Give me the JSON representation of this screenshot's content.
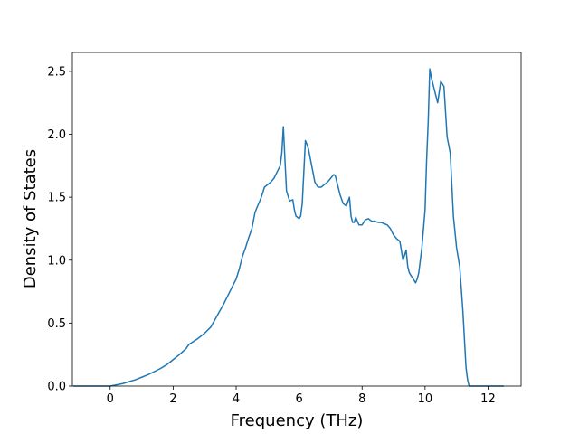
{
  "chart_data": {
    "type": "line",
    "title": "",
    "xlabel": "Frequency (THz)",
    "ylabel": "Density of States",
    "xlim": [
      -1.2,
      13.05
    ],
    "ylim": [
      0.0,
      2.65
    ],
    "xticks": [
      0,
      2,
      4,
      6,
      8,
      10,
      12
    ],
    "xtick_labels": [
      "0",
      "2",
      "4",
      "6",
      "8",
      "10",
      "12"
    ],
    "yticks": [
      0.0,
      0.5,
      1.0,
      1.5,
      2.0,
      2.5
    ],
    "ytick_labels": [
      "0.0",
      "0.5",
      "1.0",
      "1.5",
      "2.0",
      "2.5"
    ],
    "grid": false,
    "legend": "none",
    "line_color": "#1f77b4",
    "series": [
      {
        "x": [
          -1.17,
          -0.5,
          0.0,
          0.2,
          0.4,
          0.6,
          0.8,
          1.0,
          1.2,
          1.4,
          1.6,
          1.8,
          2.0,
          2.2,
          2.4,
          2.5,
          2.8,
          3.0,
          3.2,
          3.4,
          3.6,
          3.8,
          3.9,
          4.0,
          4.1,
          4.2,
          4.3,
          4.4,
          4.5,
          4.6,
          4.7,
          4.8,
          4.9,
          5.0,
          5.1,
          5.2,
          5.3,
          5.4,
          5.45,
          5.5,
          5.55,
          5.6,
          5.7,
          5.8,
          5.85,
          5.9,
          6.0,
          6.05,
          6.1,
          6.2,
          6.25,
          6.3,
          6.4,
          6.5,
          6.6,
          6.7,
          6.8,
          6.9,
          7.0,
          7.1,
          7.15,
          7.2,
          7.3,
          7.4,
          7.5,
          7.6,
          7.65,
          7.7,
          7.75,
          7.8,
          7.9,
          8.0,
          8.1,
          8.2,
          8.3,
          8.4,
          8.5,
          8.6,
          8.7,
          8.8,
          8.9,
          9.0,
          9.1,
          9.2,
          9.3,
          9.4,
          9.45,
          9.5,
          9.6,
          9.7,
          9.75,
          9.8,
          9.9,
          10.0,
          10.05,
          10.1,
          10.15,
          10.2,
          10.3,
          10.4,
          10.5,
          10.6,
          10.7,
          10.8,
          10.9,
          11.0,
          11.1,
          11.2,
          11.3,
          11.35,
          11.4,
          11.45,
          11.5,
          12.5
        ],
        "y": [
          0.0,
          0.0,
          0.0,
          0.01,
          0.02,
          0.035,
          0.05,
          0.07,
          0.09,
          0.115,
          0.14,
          0.17,
          0.21,
          0.25,
          0.295,
          0.33,
          0.38,
          0.42,
          0.47,
          0.56,
          0.65,
          0.75,
          0.8,
          0.85,
          0.93,
          1.03,
          1.1,
          1.18,
          1.25,
          1.38,
          1.44,
          1.5,
          1.58,
          1.6,
          1.62,
          1.65,
          1.7,
          1.75,
          1.85,
          2.06,
          1.8,
          1.55,
          1.47,
          1.48,
          1.4,
          1.35,
          1.33,
          1.35,
          1.45,
          1.95,
          1.92,
          1.88,
          1.75,
          1.62,
          1.58,
          1.58,
          1.6,
          1.62,
          1.65,
          1.68,
          1.67,
          1.62,
          1.52,
          1.45,
          1.43,
          1.5,
          1.35,
          1.3,
          1.3,
          1.34,
          1.28,
          1.28,
          1.32,
          1.33,
          1.31,
          1.31,
          1.3,
          1.3,
          1.29,
          1.28,
          1.25,
          1.2,
          1.17,
          1.15,
          1.0,
          1.08,
          0.95,
          0.9,
          0.86,
          0.82,
          0.85,
          0.9,
          1.1,
          1.4,
          1.8,
          2.1,
          2.52,
          2.45,
          2.35,
          2.25,
          2.42,
          2.38,
          1.98,
          1.85,
          1.35,
          1.1,
          0.95,
          0.6,
          0.15,
          0.05,
          0.0,
          0.0,
          0.0,
          0.0
        ]
      }
    ]
  }
}
